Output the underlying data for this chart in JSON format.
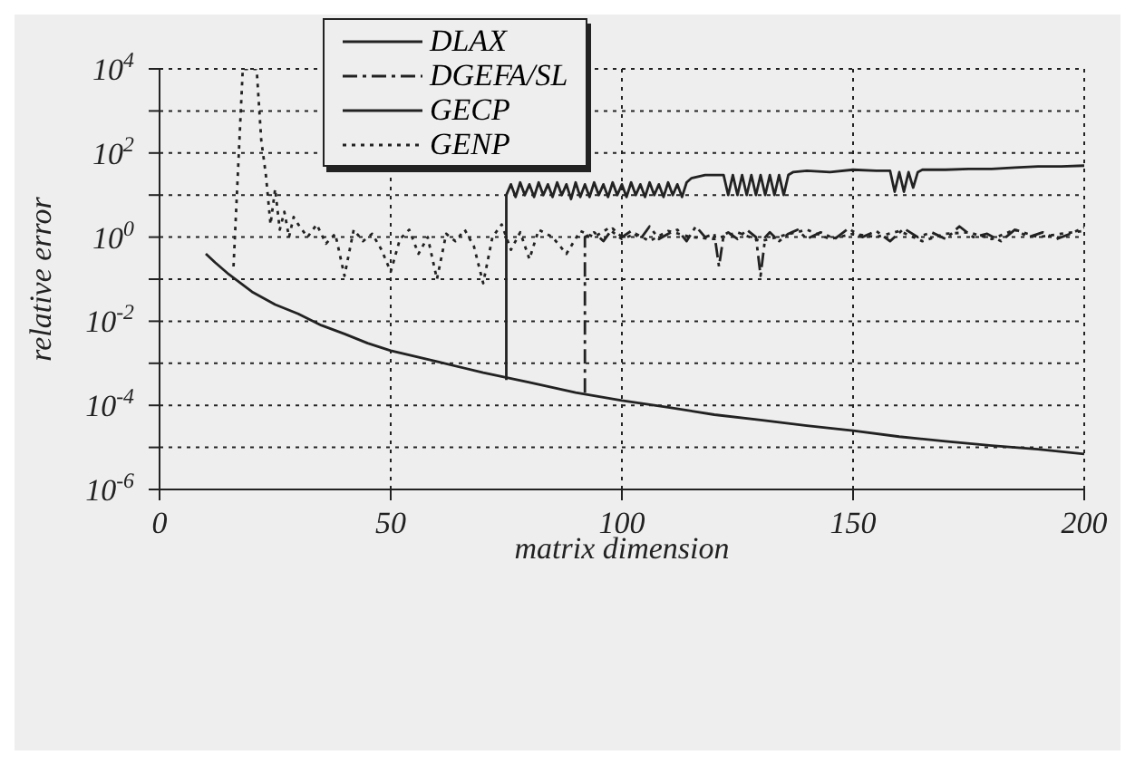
{
  "chart_data": {
    "type": "line",
    "xlabel": "matrix dimension",
    "ylabel": "relative error",
    "log": "y",
    "grid": true,
    "legend": "top",
    "marker": "none",
    "xlim": [
      0,
      200
    ],
    "xticks": [
      0,
      50,
      100,
      150,
      200
    ],
    "ylim": [
      1e-06,
      10000
    ],
    "yticks": [
      {
        "value": 1e-06,
        "label": "10$^{-6}$"
      },
      {
        "value": 1e-05,
        "label": null
      },
      {
        "value": 0.0001,
        "label": "10$^{-4}$"
      },
      {
        "value": 0.001,
        "label": null
      },
      {
        "value": 0.01,
        "label": "10$^{-2}$"
      },
      {
        "value": 0.1,
        "label": null
      },
      {
        "value": 1,
        "label": "10$^{0}$"
      },
      {
        "value": 10,
        "label": null
      },
      {
        "value": 100,
        "label": "10$^{2}$"
      },
      {
        "value": 1000,
        "label": null
      },
      {
        "value": 10000,
        "label": "10$^{4}$"
      }
    ],
    "series": [
      {
        "name": "DLAX",
        "color": "#222222",
        "line_style": "solid",
        "x": [
          75,
          75,
          76,
          77,
          78,
          79,
          80,
          81,
          82,
          83,
          84,
          85,
          86,
          87,
          88,
          89,
          90,
          91,
          92,
          93,
          94,
          95,
          96,
          97,
          98,
          99,
          100,
          101,
          102,
          103,
          104,
          105,
          106,
          107,
          108,
          109,
          110,
          111,
          112,
          113,
          114,
          115,
          118,
          120,
          122,
          123,
          124,
          125,
          126,
          127,
          128,
          129,
          130,
          131,
          132,
          133,
          134,
          135,
          136,
          137,
          140,
          145,
          150,
          155,
          158,
          159,
          160,
          161,
          162,
          163,
          164,
          165,
          166,
          170,
          175,
          180,
          185,
          190,
          195,
          200
        ],
        "values": [
          0.0004,
          10,
          18,
          9,
          20,
          10,
          18,
          9,
          20,
          10,
          18,
          9,
          20,
          10,
          18,
          8,
          20,
          9,
          18,
          9,
          20,
          10,
          18,
          9,
          20,
          10,
          18,
          9,
          20,
          10,
          18,
          9,
          20,
          10,
          18,
          9,
          20,
          10,
          18,
          9,
          20,
          25,
          30,
          30,
          30,
          10,
          30,
          10,
          30,
          10,
          30,
          10,
          30,
          10,
          30,
          10,
          30,
          10,
          30,
          35,
          38,
          35,
          40,
          38,
          38,
          12,
          35,
          12,
          35,
          15,
          35,
          40,
          40,
          40,
          42,
          42,
          45,
          48,
          48,
          50
        ]
      },
      {
        "name": "DGEFA/SL",
        "color": "#222222",
        "line_style": "dashed",
        "x": [
          92,
          92,
          94,
          96,
          98,
          100,
          102,
          104,
          106,
          108,
          110,
          112,
          114,
          116,
          118,
          120,
          121,
          122,
          123,
          125,
          127,
          129,
          130,
          131,
          132,
          134,
          136,
          138,
          140,
          143,
          146,
          149,
          152,
          155,
          158,
          161,
          164,
          167,
          170,
          173,
          176,
          179,
          182,
          185,
          188,
          191,
          194,
          197,
          200
        ],
        "values": [
          0.0002,
          1,
          1.3,
          0.8,
          1.6,
          1,
          1.4,
          0.9,
          1.8,
          0.9,
          1.2,
          1.5,
          0.8,
          1.8,
          1,
          1.2,
          0.2,
          1.1,
          1.3,
          0.9,
          1.5,
          1,
          0.12,
          1,
          1.3,
          0.8,
          1.2,
          1.5,
          0.9,
          1.3,
          0.9,
          1.6,
          1,
          1.4,
          0.8,
          1.6,
          1,
          1.3,
          0.9,
          1.8,
          1,
          1.2,
          0.8,
          1.5,
          1,
          1.3,
          0.9,
          1.2,
          1.7
        ]
      },
      {
        "name": "GECP",
        "color": "#222222",
        "line_style": "solid",
        "x": [
          10,
          12,
          15,
          20,
          25,
          30,
          35,
          40,
          45,
          50,
          60,
          70,
          80,
          90,
          100,
          110,
          120,
          130,
          140,
          150,
          160,
          170,
          180,
          190,
          200
        ],
        "values": [
          0.4,
          0.25,
          0.13,
          0.05,
          0.025,
          0.015,
          0.008,
          0.005,
          0.003,
          0.002,
          0.0011,
          0.0006,
          0.00035,
          0.0002,
          0.00013,
          9e-05,
          6e-05,
          4.5e-05,
          3.3e-05,
          2.5e-05,
          1.8e-05,
          1.4e-05,
          1.1e-05,
          9e-06,
          7e-06
        ]
      },
      {
        "name": "GENP",
        "color": "#222222",
        "line_style": "dotted",
        "x": [
          16,
          18,
          19,
          21,
          22,
          23,
          24,
          25,
          26,
          27,
          28,
          29,
          30,
          32,
          34,
          36,
          38,
          40,
          42,
          44,
          46,
          48,
          50,
          52,
          54,
          56,
          58,
          60,
          62,
          64,
          66,
          68,
          70,
          72,
          74,
          76,
          78,
          80,
          82,
          85,
          88,
          91,
          94,
          97,
          100,
          103,
          106,
          110,
          115,
          120,
          125,
          130,
          135,
          140,
          145,
          150,
          155,
          160,
          165,
          170,
          175,
          180,
          185,
          190,
          195,
          200
        ],
        "values": [
          0.2,
          10000,
          10000,
          10000,
          200,
          30,
          2,
          14,
          1.5,
          4,
          1,
          3,
          2,
          1,
          2,
          0.7,
          1.2,
          0.12,
          1.5,
          0.8,
          1.2,
          0.5,
          0.15,
          0.9,
          1.5,
          0.4,
          1,
          0.1,
          1.2,
          0.8,
          1.5,
          0.6,
          0.08,
          1,
          2,
          0.5,
          1.3,
          0.3,
          1.5,
          1,
          0.4,
          1.4,
          1,
          1.6,
          0.9,
          1.2,
          0.8,
          1.4,
          1,
          0.9,
          1.3,
          0.8,
          1.1,
          1.5,
          0.9,
          1.2,
          1,
          1.4,
          0.8,
          1.2,
          1.3,
          0.9,
          1.5,
          1,
          1.2,
          1.4
        ]
      }
    ]
  }
}
